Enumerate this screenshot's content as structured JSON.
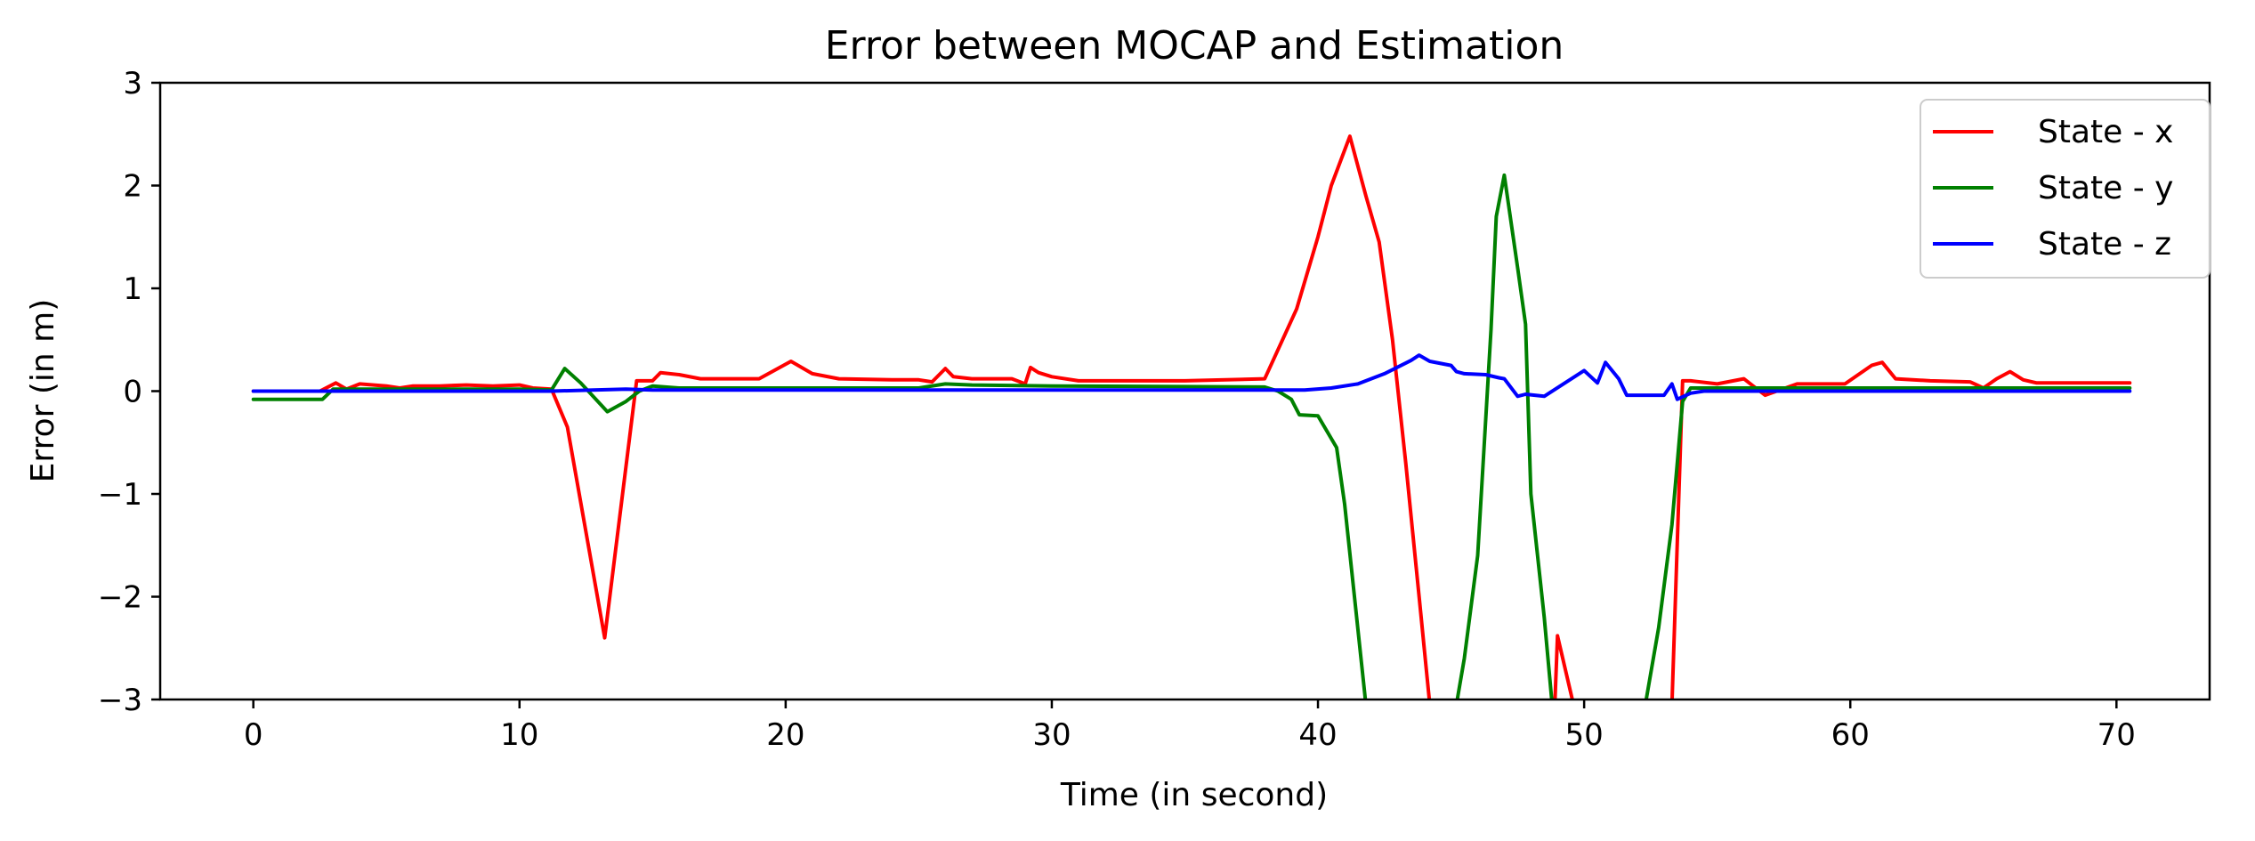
{
  "chart_data": {
    "type": "line",
    "title": "Error between MOCAP and Estimation",
    "xlabel": "Time (in second)",
    "ylabel": "Error (in m)",
    "xlim": [
      -3.5,
      73.5
    ],
    "ylim": [
      -3,
      3
    ],
    "xticks": [
      0,
      10,
      20,
      30,
      40,
      50,
      60,
      70
    ],
    "yticks": [
      3,
      2,
      1,
      0,
      -1,
      -2,
      -3
    ],
    "ytick_labels": [
      "3",
      "2",
      "1",
      "0",
      "−1",
      "−2",
      "−3"
    ],
    "grid": false,
    "legend_position": "top-right",
    "series": [
      {
        "name": "State - x",
        "color": "#ff0000",
        "points": [
          [
            0,
            0
          ],
          [
            2.5,
            0
          ],
          [
            3.1,
            0.08
          ],
          [
            3.5,
            0.02
          ],
          [
            4,
            0.07
          ],
          [
            5,
            0.05
          ],
          [
            5.5,
            0.03
          ],
          [
            6,
            0.05
          ],
          [
            7,
            0.05
          ],
          [
            8,
            0.06
          ],
          [
            9,
            0.05
          ],
          [
            10,
            0.06
          ],
          [
            10.5,
            0.03
          ],
          [
            11.2,
            0.02
          ],
          [
            11.8,
            -0.35
          ],
          [
            13.2,
            -2.4
          ],
          [
            14.4,
            0.1
          ],
          [
            15,
            0.1
          ],
          [
            15.3,
            0.18
          ],
          [
            16,
            0.16
          ],
          [
            16.8,
            0.12
          ],
          [
            17.5,
            0.12
          ],
          [
            19,
            0.12
          ],
          [
            20.2,
            0.29
          ],
          [
            21,
            0.17
          ],
          [
            22,
            0.12
          ],
          [
            24,
            0.11
          ],
          [
            25,
            0.11
          ],
          [
            25.5,
            0.09
          ],
          [
            26,
            0.22
          ],
          [
            26.3,
            0.14
          ],
          [
            27,
            0.12
          ],
          [
            28.5,
            0.12
          ],
          [
            29,
            0.07
          ],
          [
            29.2,
            0.23
          ],
          [
            29.5,
            0.18
          ],
          [
            30,
            0.14
          ],
          [
            31,
            0.1
          ],
          [
            35,
            0.1
          ],
          [
            38,
            0.12
          ],
          [
            39.2,
            0.8
          ],
          [
            40,
            1.5
          ],
          [
            40.5,
            2
          ],
          [
            41.2,
            2.48
          ],
          [
            41.8,
            1.9
          ],
          [
            42.3,
            1.45
          ],
          [
            42.8,
            0.5
          ],
          [
            43.3,
            -0.7
          ],
          [
            43.8,
            -2
          ],
          [
            44.2,
            -3.05
          ],
          [
            48.9,
            -3.05
          ],
          [
            49,
            -2.38
          ],
          [
            49.6,
            -3.05
          ],
          [
            53.3,
            -3.05
          ],
          [
            53.7,
            0.1
          ],
          [
            54,
            0.1
          ],
          [
            55,
            0.07
          ],
          [
            56,
            0.12
          ],
          [
            56.4,
            0.04
          ],
          [
            56.8,
            -0.04
          ],
          [
            58,
            0.07
          ],
          [
            59,
            0.07
          ],
          [
            59.8,
            0.07
          ],
          [
            60.8,
            0.25
          ],
          [
            61.2,
            0.28
          ],
          [
            61.7,
            0.12
          ],
          [
            63,
            0.1
          ],
          [
            64.5,
            0.09
          ],
          [
            65,
            0.03
          ],
          [
            65.5,
            0.12
          ],
          [
            66,
            0.19
          ],
          [
            66.5,
            0.11
          ],
          [
            67,
            0.08
          ],
          [
            70.5,
            0.08
          ]
        ]
      },
      {
        "name": "State - y",
        "color": "#008000",
        "points": [
          [
            0,
            -0.08
          ],
          [
            2.6,
            -0.08
          ],
          [
            3,
            0.02
          ],
          [
            10,
            0.02
          ],
          [
            11.2,
            0.01
          ],
          [
            11.7,
            0.22
          ],
          [
            12.3,
            0.08
          ],
          [
            13.3,
            -0.2
          ],
          [
            14,
            -0.1
          ],
          [
            14.5,
            0
          ],
          [
            15,
            0.05
          ],
          [
            16,
            0.03
          ],
          [
            25,
            0.03
          ],
          [
            26,
            0.07
          ],
          [
            27,
            0.06
          ],
          [
            30,
            0.05
          ],
          [
            38,
            0.04
          ],
          [
            38.5,
            0
          ],
          [
            39,
            -0.08
          ],
          [
            39.3,
            -0.23
          ],
          [
            40,
            -0.24
          ],
          [
            40.7,
            -0.55
          ],
          [
            41,
            -1.1
          ],
          [
            41.8,
            -3.05
          ],
          [
            45.2,
            -3.05
          ],
          [
            45.5,
            -2.6
          ],
          [
            46,
            -1.6
          ],
          [
            46.5,
            0.6
          ],
          [
            46.7,
            1.7
          ],
          [
            47,
            2.1
          ],
          [
            47.5,
            1.2
          ],
          [
            47.8,
            0.65
          ],
          [
            48,
            -1
          ],
          [
            48.5,
            -2.2
          ],
          [
            48.8,
            -3.05
          ],
          [
            52.3,
            -3.05
          ],
          [
            52.8,
            -2.3
          ],
          [
            53.3,
            -1.3
          ],
          [
            53.7,
            -0.1
          ],
          [
            54,
            0.03
          ],
          [
            70.5,
            0.03
          ]
        ]
      },
      {
        "name": "State - z",
        "color": "#0000ff",
        "points": [
          [
            0,
            0
          ],
          [
            10,
            0
          ],
          [
            11.2,
            0
          ],
          [
            14,
            0.02
          ],
          [
            15,
            0.01
          ],
          [
            20,
            0.01
          ],
          [
            30,
            0.01
          ],
          [
            38,
            0.01
          ],
          [
            39.5,
            0.01
          ],
          [
            40.5,
            0.03
          ],
          [
            41.5,
            0.07
          ],
          [
            42.5,
            0.17
          ],
          [
            43.5,
            0.3
          ],
          [
            43.8,
            0.35
          ],
          [
            44.2,
            0.29
          ],
          [
            45,
            0.25
          ],
          [
            45.2,
            0.19
          ],
          [
            45.5,
            0.17
          ],
          [
            46.3,
            0.16
          ],
          [
            46.8,
            0.13
          ],
          [
            47,
            0.12
          ],
          [
            47.5,
            -0.05
          ],
          [
            47.8,
            -0.03
          ],
          [
            48.5,
            -0.05
          ],
          [
            50,
            0.2
          ],
          [
            50.5,
            0.08
          ],
          [
            50.8,
            0.28
          ],
          [
            51.3,
            0.12
          ],
          [
            51.6,
            -0.04
          ],
          [
            52.5,
            -0.04
          ],
          [
            53,
            -0.04
          ],
          [
            53.3,
            0.07
          ],
          [
            53.5,
            -0.08
          ],
          [
            54,
            -0.02
          ],
          [
            54.5,
            0
          ],
          [
            70.5,
            0
          ]
        ]
      }
    ]
  }
}
